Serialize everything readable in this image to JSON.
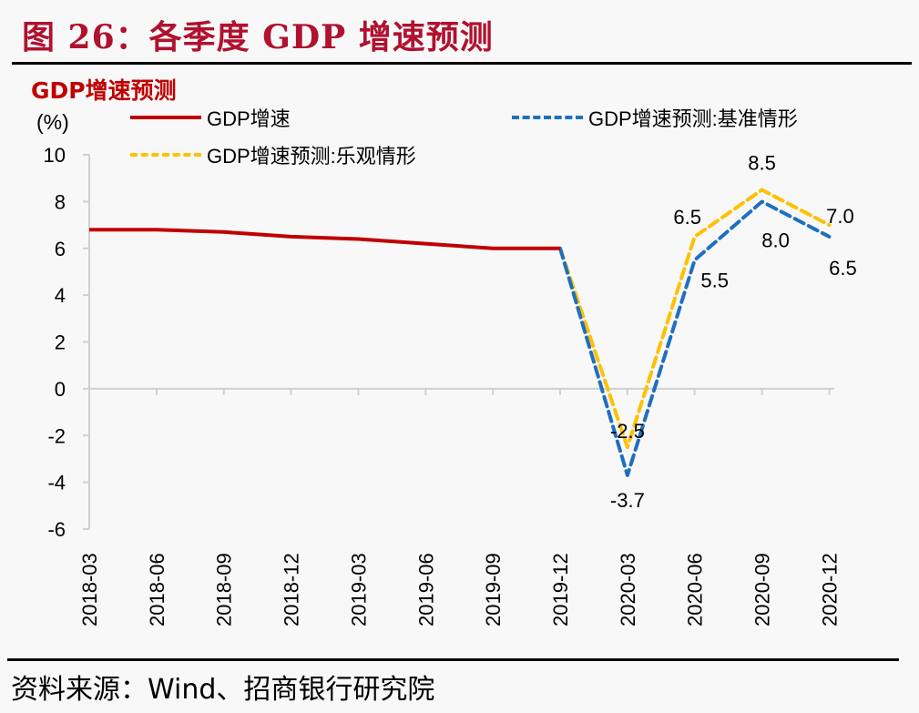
{
  "figure_title": "图 26：各季度 GDP 增速预测",
  "source": "资料来源：Wind、招商银行研究院",
  "chart_data": {
    "type": "line",
    "title": "GDP增速预测",
    "ylabel": "(%)",
    "xlabel": "",
    "ylim": [
      -6,
      10
    ],
    "yticks": [
      10,
      8,
      6,
      4,
      2,
      0,
      -2,
      -4,
      -6
    ],
    "grid": false,
    "legend_position": "top",
    "categories": [
      "2018-03",
      "2018-06",
      "2018-09",
      "2018-12",
      "2019-03",
      "2019-06",
      "2019-09",
      "2019-12",
      "2020-03",
      "2020-06",
      "2020-09",
      "2020-12"
    ],
    "series": [
      {
        "name": "GDP增速",
        "color": "#c00000",
        "style": "solid",
        "values": [
          6.8,
          6.8,
          6.7,
          6.5,
          6.4,
          6.2,
          6.0,
          6.0,
          null,
          null,
          null,
          null
        ]
      },
      {
        "name": "GDP增速预测:基准情形",
        "color": "#1f6fc0",
        "style": "dashed",
        "values": [
          null,
          null,
          null,
          null,
          null,
          null,
          null,
          6.0,
          -3.7,
          5.5,
          8.0,
          6.5
        ],
        "labels": [
          null,
          null,
          null,
          null,
          null,
          null,
          null,
          null,
          "-3.7",
          "5.5",
          "8.0",
          "6.5"
        ]
      },
      {
        "name": "GDP增速预测:乐观情形",
        "color": "#ffc000",
        "style": "dashed",
        "values": [
          null,
          null,
          null,
          null,
          null,
          null,
          null,
          6.0,
          -2.5,
          6.5,
          8.5,
          7.0
        ],
        "labels": [
          null,
          null,
          null,
          null,
          null,
          null,
          null,
          null,
          "-2.5",
          "6.5",
          "8.5",
          "7.0"
        ]
      }
    ]
  }
}
